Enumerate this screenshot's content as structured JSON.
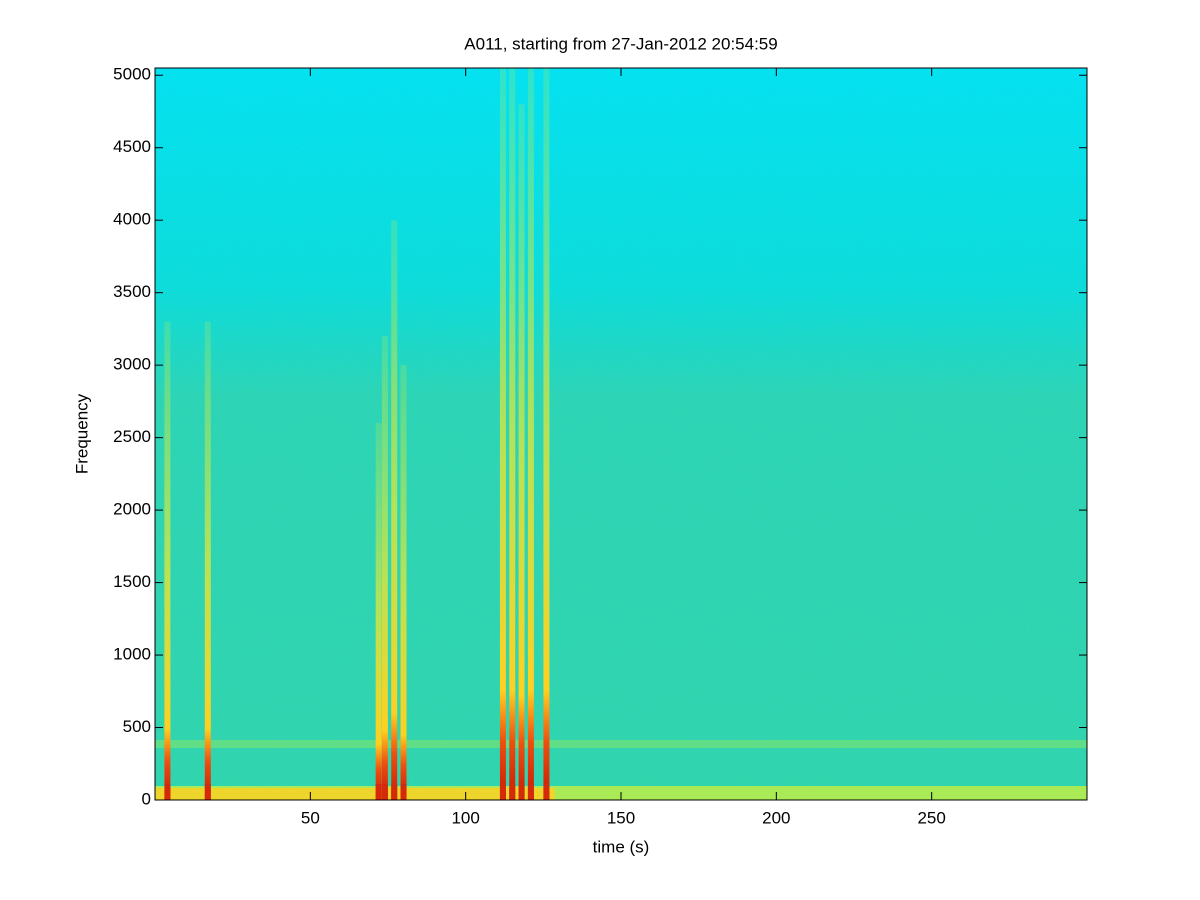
{
  "chart_data": {
    "type": "spectrogram",
    "title": "A011, starting from 27-Jan-2012 20:54:59",
    "xlabel": "time (s)",
    "ylabel": "Frequency",
    "xlim": [
      0,
      300
    ],
    "xticks": [
      50,
      100,
      150,
      200,
      250
    ],
    "ylim": [
      0,
      5050
    ],
    "yticks": [
      0,
      500,
      1000,
      1500,
      2000,
      2500,
      3000,
      3500,
      4000,
      4500,
      5000
    ],
    "x": [
      4,
      17,
      72,
      74,
      77,
      80,
      112,
      115,
      118,
      121,
      126
    ],
    "values": [
      3300,
      3300,
      2600,
      3200,
      4000,
      3000,
      5050,
      5050,
      4800,
      5050,
      5050
    ],
    "color": "#d42a0a"
  }
}
